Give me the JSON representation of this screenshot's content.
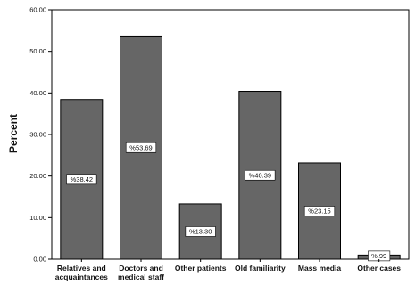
{
  "chart_data": {
    "type": "bar",
    "title": "",
    "xlabel": "",
    "ylabel": "Percent",
    "ylim": [
      0,
      60
    ],
    "yticks": [
      "0.00",
      "10.00",
      "20.00",
      "30.00",
      "40.00",
      "50.00",
      "60.00"
    ],
    "categories": [
      [
        "Relatives and",
        "acquaintances"
      ],
      [
        "Doctors and",
        "medical staff"
      ],
      [
        "Other patients"
      ],
      [
        "Old familiarity"
      ],
      [
        "Mass media"
      ],
      [
        "Other cases"
      ]
    ],
    "values": [
      38.42,
      53.69,
      13.3,
      40.39,
      23.15,
      0.99
    ],
    "data_labels": [
      "%38.42",
      "%53.69",
      "%13.30",
      "%40.39",
      "%23.15",
      "%.99"
    ],
    "grid": false,
    "legend": "none",
    "colors": {
      "bar": "#666666",
      "bar_edge": "#000000",
      "axis": "#000000",
      "label_box": "#ffffff"
    }
  }
}
